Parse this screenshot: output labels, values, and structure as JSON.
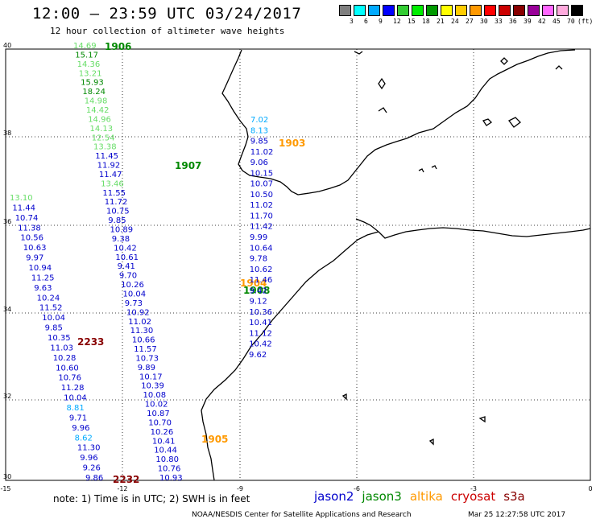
{
  "header": {
    "title": "12:00 – 23:59 UTC 03/24/2017",
    "subtitle": "12 hour collection of altimeter wave heights"
  },
  "colorbar": {
    "unit": "(ft)",
    "labels": [
      "3",
      "6",
      "9",
      "12",
      "15",
      "18",
      "21",
      "24",
      "27",
      "30",
      "33",
      "36",
      "39",
      "42",
      "45",
      "70"
    ],
    "colors": [
      "#7f7f7f",
      "#00ffff",
      "#00aaff",
      "#0000ff",
      "#33cc33",
      "#00ee00",
      "#009900",
      "#ffff00",
      "#ffcc00",
      "#ff9900",
      "#ff0000",
      "#cc0000",
      "#880000",
      "#990099",
      "#ff66ff",
      "#ffaadd",
      "#000000"
    ]
  },
  "map": {
    "lon_labels": [
      "-15",
      "-12",
      "-9",
      "-6",
      "-3",
      "0"
    ],
    "lat_labels": [
      "40",
      "38",
      "36",
      "34",
      "32",
      "30"
    ],
    "passes": [
      {
        "label": "1906",
        "color": "#008800"
      },
      {
        "label": "1907",
        "color": "#008800"
      },
      {
        "label": "1903",
        "color": "#ff9900"
      },
      {
        "label": "1904",
        "color": "#ff9900"
      },
      {
        "label": "1908",
        "color": "#008800"
      },
      {
        "label": "1905",
        "color": "#ff9900"
      },
      {
        "label": "2233",
        "color": "#880000"
      },
      {
        "label": "2232",
        "color": "#880000"
      }
    ],
    "track_a": {
      "values": [
        "14.69",
        "15.17",
        "14.36",
        "13.21",
        "15.93",
        "18.24",
        "14.98",
        "14.42",
        "14.96",
        "14.13",
        "12.54",
        "13.38",
        "11.45",
        "11.92",
        "11.47",
        "13.46",
        "11.55",
        "11.72",
        "10.75",
        "9.85",
        "10.89",
        "9.38",
        "10.42",
        "10.61",
        "9.41",
        "9.70",
        "10.26",
        "10.04",
        "9.73",
        "10.92",
        "11.02",
        "11.30",
        "10.66",
        "11.57",
        "10.73",
        "9.89",
        "10.17",
        "10.39",
        "10.08",
        "10.02",
        "10.87",
        "10.70",
        "10.26",
        "10.41",
        "10.44",
        "10.80",
        "10.76",
        "10.93"
      ],
      "colors": [
        "#66dd66",
        "#008800",
        "#66dd66",
        "#66dd66",
        "#008800",
        "#008800",
        "#66dd66",
        "#66dd66",
        "#66dd66",
        "#66dd66",
        "#66dd66",
        "#66dd66",
        "#0000cc",
        "#0000cc",
        "#0000cc",
        "#66dd66",
        "#0000cc",
        "#0000cc",
        "#0000cc",
        "#0000cc",
        "#0000cc",
        "#0000cc",
        "#0000cc",
        "#0000cc",
        "#0000cc",
        "#0000cc",
        "#0000cc",
        "#0000cc",
        "#0000cc",
        "#0000cc",
        "#0000cc",
        "#0000cc",
        "#0000cc",
        "#0000cc",
        "#0000cc",
        "#0000cc",
        "#0000cc",
        "#0000cc",
        "#0000cc",
        "#0000cc",
        "#0000cc",
        "#0000cc",
        "#0000cc",
        "#0000cc",
        "#0000cc",
        "#0000cc",
        "#0000cc",
        "#0000cc"
      ]
    },
    "track_b": {
      "values": [
        "7.02",
        "8.13",
        "9.85",
        "11.02",
        "9.06",
        "10.15",
        "10.07",
        "10.50",
        "11.02",
        "11.70",
        "11.42",
        "9.99",
        "10.64",
        "9.78",
        "10.62",
        "11.46",
        "9.42",
        "9.12",
        "10.36",
        "10.41",
        "11.12",
        "10.42",
        "9.62"
      ],
      "colors": [
        "#00aaff",
        "#00aaff",
        "#0000cc",
        "#0000cc",
        "#0000cc",
        "#0000cc",
        "#0000cc",
        "#0000cc",
        "#0000cc",
        "#0000cc",
        "#0000cc",
        "#0000cc",
        "#0000cc",
        "#0000cc",
        "#0000cc",
        "#0000cc",
        "#0000cc",
        "#0000cc",
        "#0000cc",
        "#0000cc",
        "#0000cc",
        "#0000cc",
        "#0000cc"
      ]
    },
    "track_c": {
      "values": [
        "13.10",
        "11.44",
        "10.74",
        "11.38",
        "10.56",
        "10.63",
        "9.97",
        "10.94",
        "11.25",
        "9.63",
        "10.24",
        "11.52",
        "10.04",
        "9.85",
        "10.35",
        "11.03",
        "10.28",
        "10.60",
        "10.76",
        "11.28",
        "10.04",
        "8.81",
        "9.71",
        "9.96",
        "8.62",
        "11.30",
        "9.96",
        "9.26",
        "9.86"
      ],
      "colors": [
        "#66dd66",
        "#0000cc",
        "#0000cc",
        "#0000cc",
        "#0000cc",
        "#0000cc",
        "#0000cc",
        "#0000cc",
        "#0000cc",
        "#0000cc",
        "#0000cc",
        "#0000cc",
        "#0000cc",
        "#0000cc",
        "#0000cc",
        "#0000cc",
        "#0000cc",
        "#0000cc",
        "#0000cc",
        "#0000cc",
        "#0000cc",
        "#00aaff",
        "#0000cc",
        "#0000cc",
        "#00aaff",
        "#0000cc",
        "#0000cc",
        "#0000cc",
        "#0000cc"
      ]
    }
  },
  "note": "note: 1) Time is in UTC; 2) SWH is in feet",
  "legend": [
    {
      "label": "jason2",
      "color": "#0000cc"
    },
    {
      "label": "jason3",
      "color": "#008800"
    },
    {
      "label": "altika",
      "color": "#ff9900"
    },
    {
      "label": "cryosat",
      "color": "#cc0000"
    },
    {
      "label": "s3a",
      "color": "#880000"
    }
  ],
  "footer": {
    "credit": "NOAA/NESDIS Center for Satellite Applications and Research",
    "timestamp": "Mar 25 12:27:58 UTC 2017"
  }
}
